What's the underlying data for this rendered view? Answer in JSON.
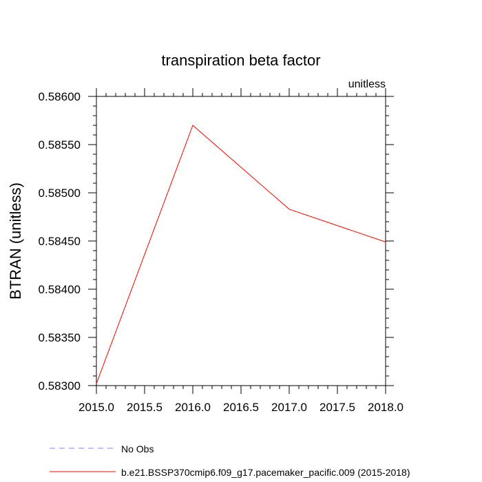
{
  "chart_data": {
    "type": "line",
    "title": "transpiration beta factor",
    "units_label": "unitless",
    "ylabel": "BTRAN  (unitless)",
    "xlabel": "",
    "xlim": [
      2015.0,
      2018.0
    ],
    "ylim": [
      0.583,
      0.586
    ],
    "x_ticks": [
      2015.0,
      2015.5,
      2016.0,
      2016.5,
      2017.0,
      2017.5,
      2018.0
    ],
    "x_tick_labels": [
      "2015.0",
      "2015.5",
      "2016.0",
      "2016.5",
      "2017.0",
      "2017.5",
      "2018.0"
    ],
    "y_ticks": [
      0.583,
      0.5835,
      0.584,
      0.5845,
      0.585,
      0.5855,
      0.586
    ],
    "y_tick_labels": [
      "0.58300",
      "0.58350",
      "0.58400",
      "0.58450",
      "0.58500",
      "0.58550",
      "0.58600"
    ],
    "grid": false,
    "series": [
      {
        "name": "b.e21.BSSP370cmip6.f09_g17.pacemaker_pacific.009 (2015-2018)",
        "color": "#ff0000",
        "dash": "solid",
        "x": [
          2015.0,
          2016.0,
          2017.0,
          2018.0
        ],
        "values": [
          0.58302,
          0.5857,
          0.58483,
          0.58449
        ]
      }
    ],
    "legend": {
      "placement": "bottom-left",
      "entries": [
        {
          "label": "No Obs",
          "color": "#8080ff",
          "dash": "dashed"
        },
        {
          "label": "b.e21.BSSP370cmip6.f09_g17.pacemaker_pacific.009 (2015-2018)",
          "color": "#ff0000",
          "dash": "solid"
        }
      ]
    }
  }
}
